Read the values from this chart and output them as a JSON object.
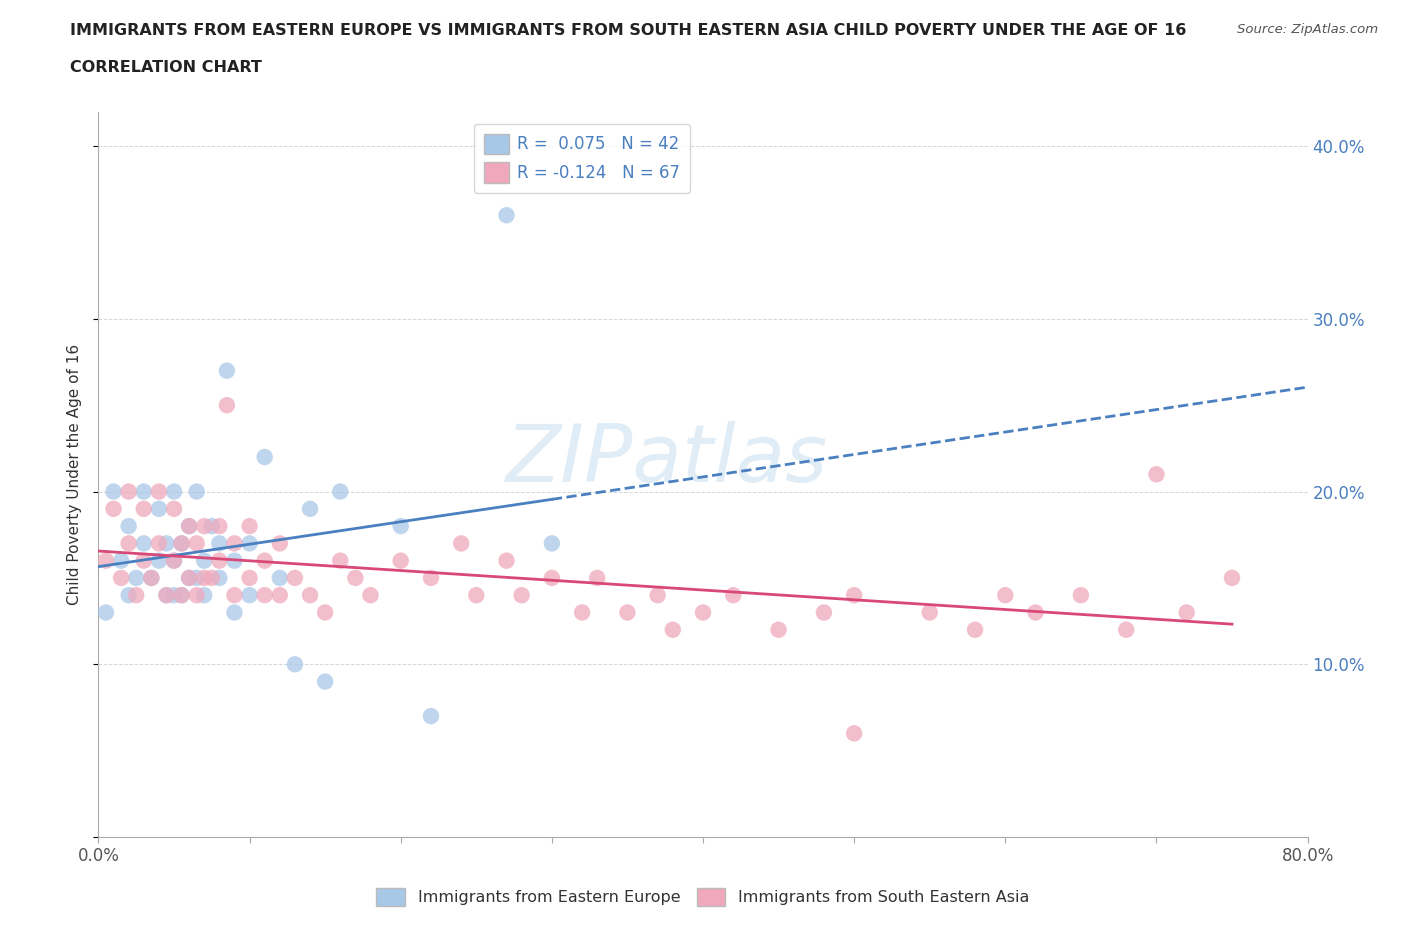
{
  "title_line1": "IMMIGRANTS FROM EASTERN EUROPE VS IMMIGRANTS FROM SOUTH EASTERN ASIA CHILD POVERTY UNDER THE AGE OF 16",
  "title_line2": "CORRELATION CHART",
  "source": "Source: ZipAtlas.com",
  "ylabel": "Child Poverty Under the Age of 16",
  "xlim": [
    0.0,
    0.8
  ],
  "ylim": [
    0.0,
    0.42
  ],
  "x_ticks": [
    0.0,
    0.1,
    0.2,
    0.3,
    0.4,
    0.5,
    0.6,
    0.7,
    0.8
  ],
  "x_tick_labels": [
    "0.0%",
    "",
    "",
    "",
    "",
    "",
    "",
    "",
    "80.0%"
  ],
  "y_ticks": [
    0.0,
    0.1,
    0.2,
    0.3,
    0.4
  ],
  "y_tick_labels_right": [
    "",
    "10.0%",
    "20.0%",
    "30.0%",
    "40.0%"
  ],
  "r_blue": 0.075,
  "n_blue": 42,
  "r_pink": -0.124,
  "n_pink": 67,
  "color_blue": "#a8c8e8",
  "color_pink": "#f0a8bc",
  "line_color_blue": "#4a7fc0",
  "line_color_pink": "#d84878",
  "watermark_text": "ZIPatlas",
  "blue_scatter_x": [
    0.005,
    0.01,
    0.015,
    0.02,
    0.02,
    0.025,
    0.03,
    0.03,
    0.035,
    0.04,
    0.04,
    0.045,
    0.045,
    0.05,
    0.05,
    0.05,
    0.055,
    0.055,
    0.06,
    0.06,
    0.065,
    0.065,
    0.07,
    0.07,
    0.075,
    0.08,
    0.08,
    0.085,
    0.09,
    0.09,
    0.1,
    0.1,
    0.11,
    0.12,
    0.13,
    0.14,
    0.15,
    0.16,
    0.2,
    0.22,
    0.27,
    0.3
  ],
  "blue_scatter_y": [
    0.13,
    0.2,
    0.16,
    0.14,
    0.18,
    0.15,
    0.17,
    0.2,
    0.15,
    0.16,
    0.19,
    0.14,
    0.17,
    0.14,
    0.16,
    0.2,
    0.14,
    0.17,
    0.15,
    0.18,
    0.15,
    0.2,
    0.14,
    0.16,
    0.18,
    0.15,
    0.17,
    0.27,
    0.13,
    0.16,
    0.14,
    0.17,
    0.22,
    0.15,
    0.1,
    0.19,
    0.09,
    0.2,
    0.18,
    0.07,
    0.36,
    0.17
  ],
  "pink_scatter_x": [
    0.005,
    0.01,
    0.015,
    0.02,
    0.02,
    0.025,
    0.03,
    0.03,
    0.035,
    0.04,
    0.04,
    0.045,
    0.05,
    0.05,
    0.055,
    0.055,
    0.06,
    0.06,
    0.065,
    0.065,
    0.07,
    0.07,
    0.075,
    0.08,
    0.08,
    0.085,
    0.09,
    0.09,
    0.1,
    0.1,
    0.11,
    0.11,
    0.12,
    0.12,
    0.13,
    0.14,
    0.15,
    0.16,
    0.17,
    0.18,
    0.2,
    0.22,
    0.24,
    0.25,
    0.27,
    0.28,
    0.3,
    0.32,
    0.33,
    0.35,
    0.37,
    0.38,
    0.4,
    0.42,
    0.45,
    0.48,
    0.5,
    0.55,
    0.58,
    0.6,
    0.62,
    0.65,
    0.68,
    0.7,
    0.72,
    0.75,
    0.5
  ],
  "pink_scatter_y": [
    0.16,
    0.19,
    0.15,
    0.17,
    0.2,
    0.14,
    0.16,
    0.19,
    0.15,
    0.17,
    0.2,
    0.14,
    0.16,
    0.19,
    0.14,
    0.17,
    0.15,
    0.18,
    0.14,
    0.17,
    0.15,
    0.18,
    0.15,
    0.16,
    0.18,
    0.25,
    0.14,
    0.17,
    0.15,
    0.18,
    0.14,
    0.16,
    0.14,
    0.17,
    0.15,
    0.14,
    0.13,
    0.16,
    0.15,
    0.14,
    0.16,
    0.15,
    0.17,
    0.14,
    0.16,
    0.14,
    0.15,
    0.13,
    0.15,
    0.13,
    0.14,
    0.12,
    0.13,
    0.14,
    0.12,
    0.13,
    0.14,
    0.13,
    0.12,
    0.14,
    0.13,
    0.14,
    0.12,
    0.21,
    0.13,
    0.15,
    0.06
  ]
}
